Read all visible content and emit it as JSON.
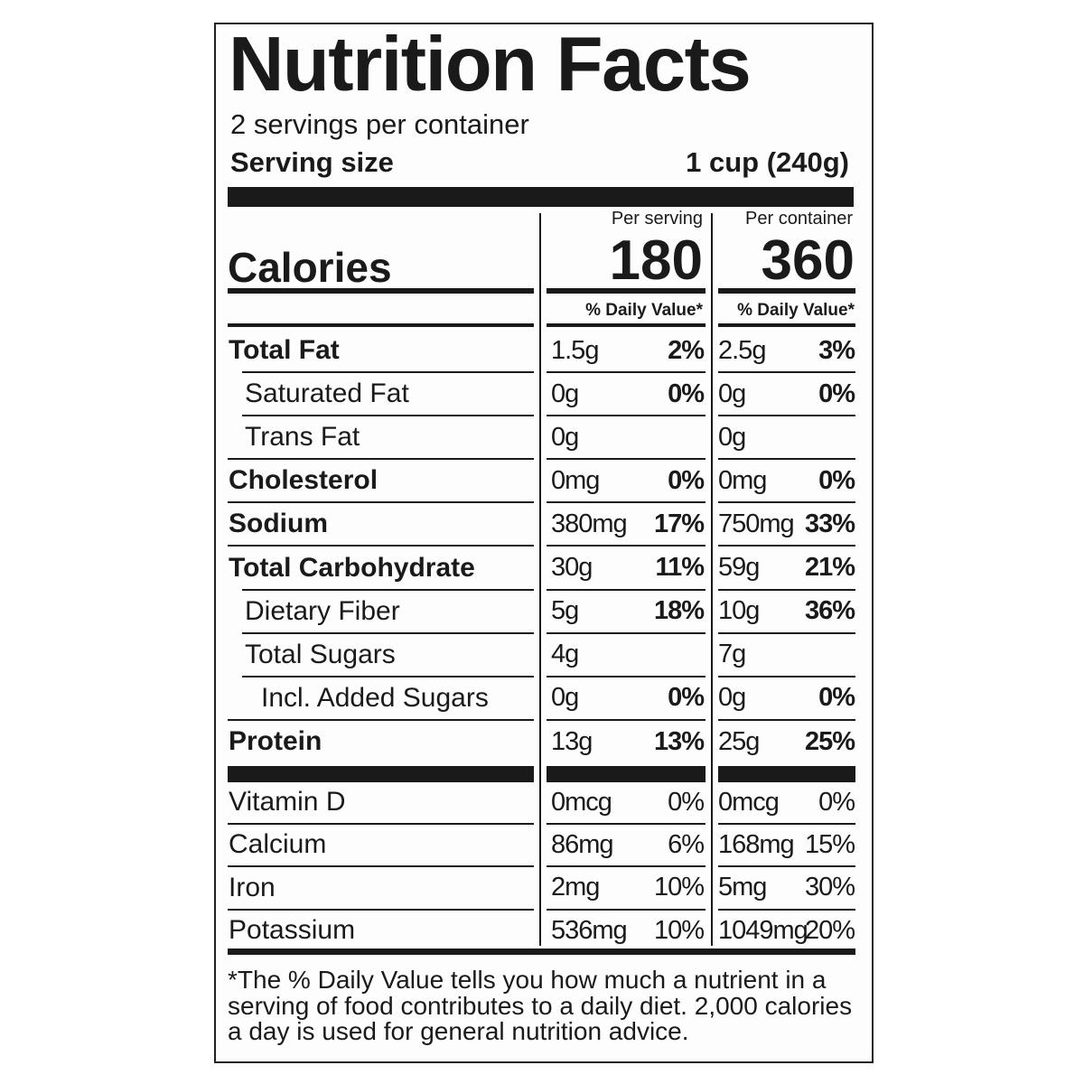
{
  "header": {
    "title": "Nutrition Facts",
    "servings": "2 servings per container",
    "serving_size_label": "Serving size",
    "serving_size": "1 cup (240g)"
  },
  "columns": {
    "per_serving": "Per serving",
    "per_container": "Per container",
    "daily_value": "% Daily Value*"
  },
  "calories": {
    "label": "Calories",
    "per_serving": "180",
    "per_container": "360"
  },
  "nutrients": [
    {
      "name": "Total Fat",
      "serving": "1.5g",
      "serving_dv": "2%",
      "container": "2.5g",
      "container_dv": "3%"
    },
    {
      "name": "Saturated Fat",
      "serving": "0g",
      "serving_dv": "0%",
      "container": "0g",
      "container_dv": "0%"
    },
    {
      "name": "Trans Fat",
      "serving": "0g",
      "container": "0g"
    },
    {
      "name": "Cholesterol",
      "serving": "0mg",
      "serving_dv": "0%",
      "container": "0mg",
      "container_dv": "0%"
    },
    {
      "name": "Sodium",
      "serving": "380mg",
      "serving_dv": "17%",
      "container": "750mg",
      "container_dv": "33%"
    },
    {
      "name": "Total Carbohydrate",
      "serving": "30g",
      "serving_dv": "11%",
      "container": "59g",
      "container_dv": "21%"
    },
    {
      "name": "Dietary Fiber",
      "serving": "5g",
      "serving_dv": "18%",
      "container": "10g",
      "container_dv": "36%"
    },
    {
      "name": "Total Sugars",
      "serving": "4g",
      "container": "7g"
    },
    {
      "name": "Incl. Added Sugars",
      "serving": "0g",
      "serving_dv": "0%",
      "container": "0g",
      "container_dv": "0%"
    },
    {
      "name": "Protein",
      "serving": "13g",
      "serving_dv": "13%",
      "container": "25g",
      "container_dv": "25%"
    }
  ],
  "vitamins": [
    {
      "name": "Vitamin D",
      "serving": "0mcg",
      "serving_dv": "0%",
      "container": "0mcg",
      "container_dv": "0%"
    },
    {
      "name": "Calcium",
      "serving": "86mg",
      "serving_dv": "6%",
      "container": "168mg",
      "container_dv": "15%"
    },
    {
      "name": "Iron",
      "serving": "2mg",
      "serving_dv": "10%",
      "container": "5mg",
      "container_dv": "30%"
    },
    {
      "name": "Potassium",
      "serving": "536mg",
      "serving_dv": "10%",
      "container": "1049mg",
      "container_dv": "20%"
    }
  ],
  "footnote": [
    "*The % Daily Value tells you how much a nutrient in a",
    "serving of food contributes to a daily diet. 2,000 calories",
    "a day is used for general nutrition advice."
  ]
}
